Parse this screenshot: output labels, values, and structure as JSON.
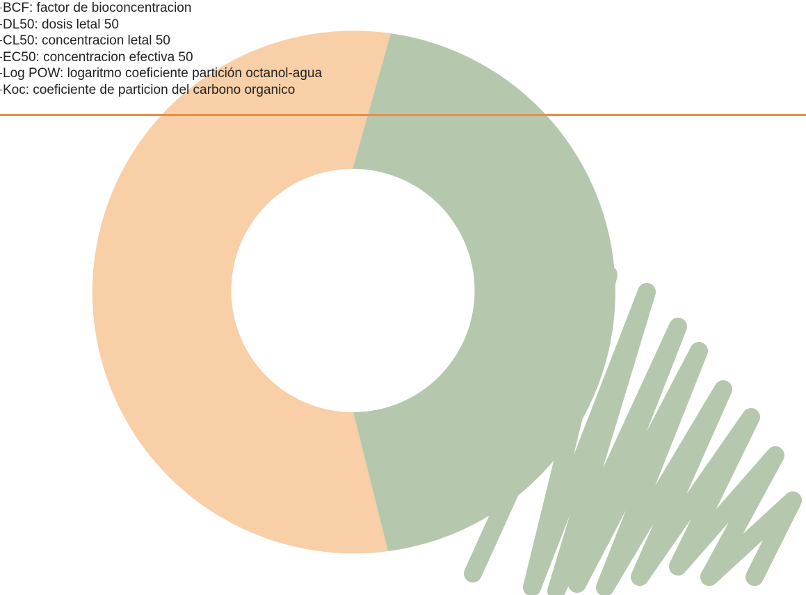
{
  "colors": {
    "accent_line": "#e98f46",
    "donut_peach": "#f8cfa6",
    "donut_sage": "#b5c7ad",
    "text": "#222222"
  },
  "icons": [
    "donut-graphic",
    "scribble-graphic"
  ],
  "glossary": [
    {
      "label": "BCF: factor de bioconcentracion"
    },
    {
      "label": "DL50: dosis letal 50"
    },
    {
      "label": "CL50: concentracion letal 50"
    },
    {
      "label": "EC50: concentracion efectiva 50"
    },
    {
      "label": "Log POW: logaritmo coeficiente partición octanol-agua"
    },
    {
      "label": "Koc: coeficiente de particion del carbono organico"
    }
  ]
}
